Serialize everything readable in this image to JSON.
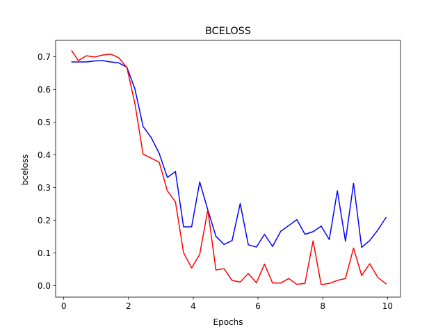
{
  "chart_data": {
    "type": "line",
    "title": "BCELOSS",
    "xlabel": "Epochs",
    "ylabel": "bceloss",
    "xlim": [
      -0.25,
      10.4
    ],
    "ylim": [
      -0.035,
      0.75
    ],
    "x_ticks": [
      0,
      2,
      4,
      6,
      8,
      10
    ],
    "y_ticks": [
      0.0,
      0.1,
      0.2,
      0.3,
      0.4,
      0.5,
      0.6,
      0.7
    ],
    "x_tick_labels": [
      "0",
      "2",
      "4",
      "6",
      "8",
      "10"
    ],
    "y_tick_labels": [
      "0.0",
      "0.1",
      "0.2",
      "0.3",
      "0.4",
      "0.5",
      "0.6",
      "0.7"
    ],
    "grid": false,
    "x": [
      0.25,
      0.45,
      0.7,
      0.95,
      1.2,
      1.45,
      1.7,
      1.95,
      2.2,
      2.45,
      2.7,
      2.95,
      3.2,
      3.45,
      3.7,
      3.95,
      4.2,
      4.45,
      4.7,
      4.95,
      5.2,
      5.45,
      5.7,
      5.95,
      6.2,
      6.45,
      6.7,
      6.95,
      7.2,
      7.45,
      7.7,
      7.95,
      8.2,
      8.45,
      8.7,
      8.95,
      9.2,
      9.45,
      9.7,
      9.95
    ],
    "series": [
      {
        "color": "#0000ff",
        "values": [
          0.684,
          0.684,
          0.684,
          0.687,
          0.688,
          0.684,
          0.681,
          0.668,
          0.601,
          0.487,
          0.453,
          0.404,
          0.331,
          0.349,
          0.18,
          0.18,
          0.317,
          0.232,
          0.151,
          0.126,
          0.138,
          0.251,
          0.125,
          0.118,
          0.157,
          0.12,
          0.166,
          0.184,
          0.202,
          0.157,
          0.165,
          0.182,
          0.141,
          0.29,
          0.136,
          0.313,
          0.117,
          0.138,
          0.17,
          0.208
        ]
      },
      {
        "color": "#ff0000",
        "values": [
          0.718,
          0.688,
          0.703,
          0.699,
          0.705,
          0.708,
          0.697,
          0.667,
          0.556,
          0.402,
          0.39,
          0.377,
          0.29,
          0.256,
          0.101,
          0.054,
          0.096,
          0.232,
          0.048,
          0.052,
          0.016,
          0.011,
          0.037,
          0.009,
          0.066,
          0.008,
          0.008,
          0.022,
          0.004,
          0.007,
          0.137,
          0.003,
          0.007,
          0.016,
          0.022,
          0.115,
          0.031,
          0.067,
          0.025,
          0.006
        ]
      }
    ]
  }
}
